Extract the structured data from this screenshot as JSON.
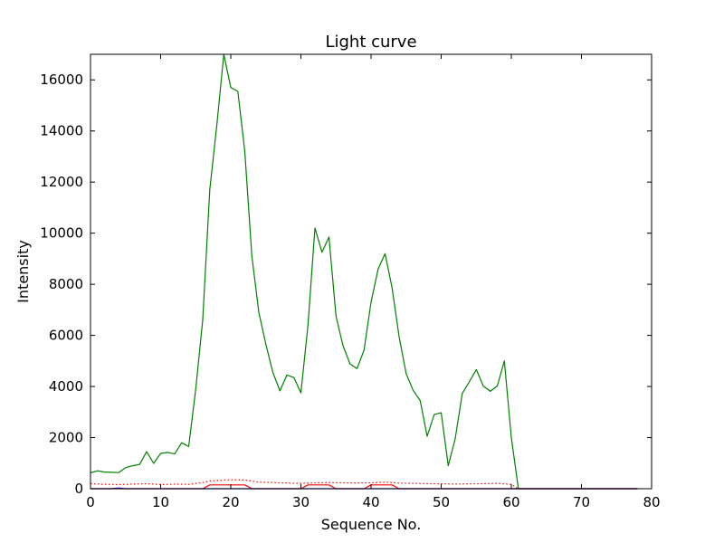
{
  "chart_data": {
    "type": "line",
    "title": "Light curve",
    "xlabel": "Sequence No.",
    "ylabel": "Intensity",
    "xlim": [
      0,
      80
    ],
    "ylim": [
      0,
      17000
    ],
    "xticks": [
      "0",
      "10",
      "20",
      "30",
      "40",
      "50",
      "60",
      "70",
      "80"
    ],
    "yticks": [
      "0",
      "2000",
      "4000",
      "6000",
      "8000",
      "10000",
      "12000",
      "14000",
      "16000"
    ],
    "grid": false,
    "legend": "none",
    "series": [
      {
        "color": "#008000",
        "style": "solid",
        "x": [
          0,
          1,
          2,
          3,
          4,
          5,
          6,
          7,
          8,
          9,
          10,
          11,
          12,
          13,
          14,
          15,
          16,
          17,
          18,
          19,
          20,
          21,
          22,
          23,
          24,
          25,
          26,
          27,
          28,
          29,
          30,
          31,
          32,
          33,
          34,
          35,
          36,
          37,
          38,
          39,
          40,
          41,
          42,
          43,
          44,
          45,
          46,
          47,
          48,
          49,
          50,
          51,
          52,
          53,
          54,
          55,
          56,
          57,
          58,
          59,
          60,
          61,
          62,
          63,
          64,
          65,
          66,
          67,
          68,
          69,
          70,
          71,
          72,
          73,
          74,
          75,
          76,
          77,
          78
        ],
        "y": [
          620,
          700,
          650,
          640,
          630,
          820,
          900,
          950,
          1450,
          990,
          1380,
          1420,
          1360,
          1800,
          1650,
          3900,
          6600,
          11700,
          14200,
          17000,
          15700,
          15550,
          13200,
          9100,
          6900,
          5650,
          4550,
          3830,
          4450,
          4350,
          3750,
          6400,
          10200,
          9250,
          9850,
          6750,
          5600,
          4880,
          4700,
          5430,
          7300,
          8600,
          9200,
          7850,
          5950,
          4500,
          3850,
          3450,
          2050,
          2900,
          2970,
          900,
          1960,
          3730,
          4180,
          4660,
          4020,
          3810,
          4020,
          5000,
          2000,
          0,
          0,
          0,
          0,
          0,
          0,
          0,
          0,
          0,
          0,
          0,
          0,
          0,
          0,
          0,
          0,
          0,
          0
        ]
      },
      {
        "color": "#ff0000",
        "style": "dotted",
        "x": [
          0,
          2,
          4,
          6,
          8,
          10,
          12,
          14,
          16,
          17,
          18,
          20,
          22,
          24,
          26,
          28,
          30,
          32,
          34,
          36,
          38,
          40,
          42,
          44,
          46,
          48,
          50,
          52,
          54,
          56,
          58,
          60,
          61,
          62,
          64,
          66,
          68,
          70,
          72,
          74,
          76,
          78
        ],
        "y": [
          200,
          170,
          160,
          180,
          200,
          160,
          180,
          170,
          240,
          300,
          320,
          350,
          340,
          260,
          240,
          220,
          210,
          230,
          240,
          230,
          220,
          230,
          260,
          220,
          210,
          200,
          190,
          180,
          190,
          200,
          210,
          170,
          0,
          0,
          0,
          0,
          0,
          0,
          0,
          0,
          0,
          0
        ]
      },
      {
        "color": "#ff0000",
        "style": "solid",
        "x": [
          0,
          16,
          17,
          22,
          23,
          30,
          31,
          34,
          35,
          39,
          40,
          43,
          44,
          78
        ],
        "y": [
          0,
          0,
          150,
          150,
          0,
          0,
          150,
          150,
          0,
          0,
          150,
          150,
          0,
          0
        ]
      },
      {
        "color": "#0000ff",
        "style": "solid",
        "x": [
          0,
          3,
          4,
          5,
          78
        ],
        "y": [
          0,
          0,
          30,
          0,
          0
        ]
      }
    ]
  }
}
